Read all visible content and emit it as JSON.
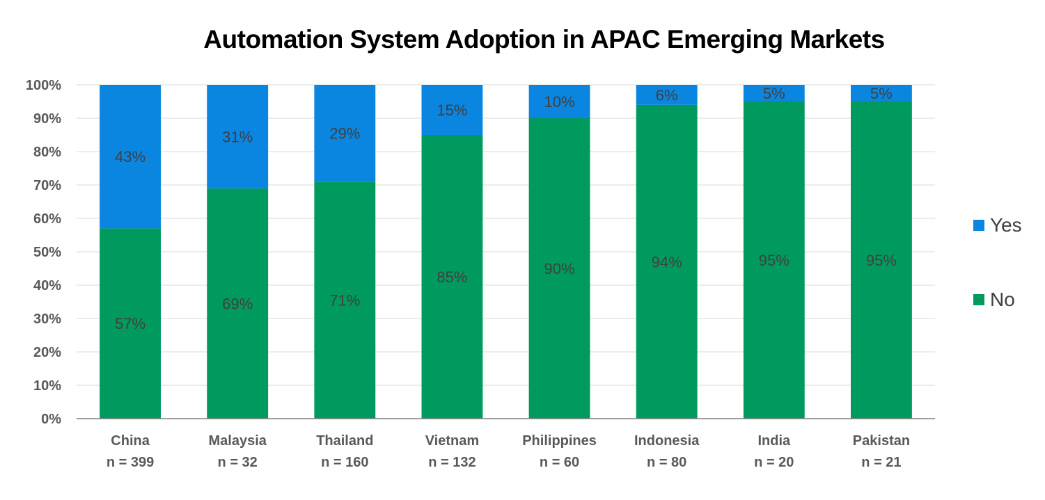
{
  "chart_data": {
    "type": "bar",
    "stacked": true,
    "title": "Automation System Adoption in APAC Emerging Markets",
    "categories": [
      "China",
      "Malaysia",
      "Thailand",
      "Vietnam",
      "Philippines",
      "Indonesia",
      "India",
      "Pakistan"
    ],
    "sample_sizes": [
      "n =  399",
      "n = 32",
      "n = 160",
      "n = 132",
      "n = 60",
      "n = 80",
      "n = 20",
      "n = 21"
    ],
    "series": [
      {
        "name": "No",
        "color": "#009a5e",
        "values": [
          57,
          69,
          71,
          85,
          90,
          94,
          95,
          95
        ]
      },
      {
        "name": "Yes",
        "color": "#0a86e0",
        "values": [
          43,
          31,
          29,
          15,
          10,
          6,
          5,
          5
        ]
      }
    ],
    "ylim": [
      0,
      100
    ],
    "yticks": [
      "0%",
      "10%",
      "20%",
      "30%",
      "40%",
      "50%",
      "60%",
      "70%",
      "80%",
      "90%",
      "100%"
    ],
    "grid": true,
    "legend_placement": "right"
  }
}
